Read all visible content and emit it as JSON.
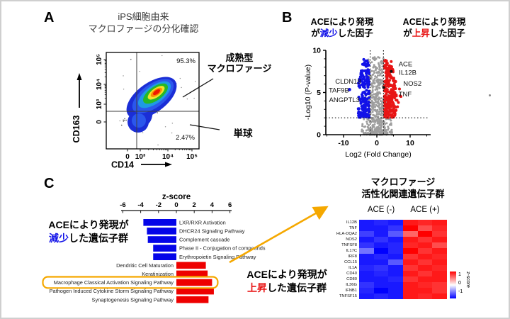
{
  "colors": {
    "blue": "#1212e8",
    "red": "#e81515",
    "orange": "#f5a800",
    "gray": "#9e9e9e",
    "dark_gray": "#3f3f3f"
  },
  "panel_a": {
    "label": "A",
    "title_line1": "iPS細胞由来",
    "title_line2": "マクロファージの分化確認",
    "x_axis_label": "CD14",
    "y_axis_label": "CD163",
    "pct_mature": "95.3%",
    "pct_monocyte": "2.47%",
    "mature_line1": "成熟型",
    "mature_line2": "マクロファージ",
    "monocyte": "単球"
  },
  "panel_b": {
    "label": "B",
    "down_title_line1": "ACEにより発現",
    "down_pre": "が",
    "down_word": "減少",
    "down_post": "した因子",
    "up_title_line1": "ACEにより発現",
    "up_pre": "が",
    "up_word": "上昇",
    "up_post": "した因子",
    "xlabel": "Log2 (Fold Change)",
    "ylabel": "-Log10 (P-value)"
  },
  "panel_c": {
    "label": "C",
    "bar_title": "z-score",
    "down_line1": "ACEにより発現が",
    "down_word": "減少",
    "down_post": "した遺伝子群",
    "up_line1": "ACEにより発現が",
    "up_word": "上昇",
    "up_post": "した遺伝子群",
    "heatmap_title_line1": "マクロファージ",
    "heatmap_title_line2": "活性化関連遺伝子群"
  },
  "chart_data": [
    {
      "type": "scatter",
      "name": "flow-cytometry-density",
      "title": "iPS細胞由来 マクロファージの分化確認",
      "xlabel": "CD14",
      "ylabel": "CD163",
      "x_ticks": [
        "0",
        "10³",
        "10⁴",
        "10⁵"
      ],
      "y_ticks": [
        "0",
        "10³",
        "10⁴",
        "10⁵"
      ],
      "quadrants": [
        {
          "region": "upper_right",
          "percent": "95.3%",
          "annotation": "成熟型マクロファージ"
        },
        {
          "region": "lower_right",
          "percent": "2.47%",
          "annotation": "単球"
        }
      ]
    },
    {
      "type": "scatter",
      "name": "volcano-plot",
      "xlabel": "Log2 (Fold Change)",
      "ylabel": "-Log10 (P-value)",
      "xlim": [
        -16,
        16
      ],
      "ylim": [
        0,
        10
      ],
      "x_ticks": [
        -10,
        0,
        10
      ],
      "y_ticks": [
        0,
        5,
        10
      ],
      "p_threshold_line_y": 2,
      "fc_threshold_lines_x": [
        -2,
        2
      ],
      "down_genes": [
        {
          "gene": "CLDN18",
          "x": -4.6,
          "y": 6.35,
          "lx": -4.1,
          "ly": 6.35
        },
        {
          "gene": "TAF9B",
          "x": -8.2,
          "y": 5.35,
          "lx": -7.7,
          "ly": 5.3
        },
        {
          "gene": "ANGPTL3",
          "x": -5.1,
          "y": 4.2,
          "lx": -4.5,
          "ly": 4.15
        }
      ],
      "up_genes": [
        {
          "gene": "ACE",
          "x": 4.4,
          "y": 8.05,
          "lx": 5.9,
          "ly": 8.4
        },
        {
          "gene": "IL12B",
          "x": 4.15,
          "y": 7.5,
          "lx": 6.0,
          "ly": 7.4
        },
        {
          "gene": "NOS2",
          "x": 5.6,
          "y": 6.3,
          "lx": 7.3,
          "ly": 6.1
        },
        {
          "gene": "TNF",
          "x": 4.5,
          "y": 5.15,
          "lx": 5.9,
          "ly": 4.85
        }
      ],
      "dark_points": [
        [
          4.35,
          7.5
        ],
        [
          2.05,
          5.6
        ]
      ],
      "n_points": {
        "gray": 520,
        "blue": 170,
        "red": 210
      }
    },
    {
      "type": "bar",
      "name": "pathway-z-scores",
      "title": "z-score",
      "orientation": "horizontal",
      "x_ticks": [
        "-6",
        "-4",
        "-2",
        "0",
        "2",
        "4",
        "6"
      ],
      "xlim": [
        -7,
        7
      ],
      "bars": [
        {
          "label": "LXR/RXR Activation",
          "value": -3.7
        },
        {
          "label": "DHCR24 Signaling Pathway",
          "value": -3.3
        },
        {
          "label": "Complement cascade",
          "value": -3.2
        },
        {
          "label": "Phase II - Conjugation of compounds",
          "value": -2.6
        },
        {
          "label": "Erythropoietin Signaling Pathway",
          "value": -2.6
        },
        {
          "label": "Dendritic Cell Maturation",
          "value": 3.3
        },
        {
          "label": "Keratinization",
          "value": 3.5
        },
        {
          "label": "Macrophage Classical Activation Signaling Pathway",
          "value": 4.0,
          "highlighted": true
        },
        {
          "label": "Pathogen Induced Cytokine Storm Signaling Pathway",
          "value": 4.2
        },
        {
          "label": "Synaptogenesis Signaling Pathway",
          "value": 3.6
        }
      ]
    },
    {
      "type": "heatmap",
      "name": "macrophage-activation-genes",
      "title": "マクロファージ 活性化関連遺伝子群",
      "col_groups": [
        {
          "label": "ACE (-)",
          "n_cols": 3
        },
        {
          "label": "ACE (+)",
          "n_cols": 3
        }
      ],
      "rows": [
        "IL12B",
        "TNF",
        "HLA-DQA2",
        "NOS2",
        "TNFSF8",
        "IL17C",
        "IRF8",
        "CCL15",
        "IL1A",
        "CD40",
        "CD80",
        "IL36G",
        "IFNB1",
        "TNFSF15"
      ],
      "values": [
        [
          -0.9,
          -0.85,
          -0.9,
          0.9,
          0.85,
          0.9
        ],
        [
          -0.9,
          -0.9,
          -0.8,
          1.0,
          0.7,
          0.85
        ],
        [
          -0.75,
          -0.9,
          -0.65,
          0.6,
          1.0,
          0.8
        ],
        [
          -0.9,
          -0.8,
          -0.9,
          0.9,
          0.8,
          0.9
        ],
        [
          -0.8,
          -0.9,
          -0.85,
          0.85,
          0.9,
          0.7
        ],
        [
          -0.55,
          -1.0,
          -0.85,
          1.0,
          0.8,
          0.9
        ],
        [
          -0.9,
          -0.85,
          -0.9,
          0.8,
          0.9,
          0.85
        ],
        [
          -0.9,
          -0.9,
          -0.65,
          0.9,
          0.8,
          0.9
        ],
        [
          -0.85,
          -0.8,
          -0.9,
          0.8,
          0.9,
          0.85
        ],
        [
          -0.9,
          -0.85,
          -0.9,
          0.9,
          0.8,
          0.9
        ],
        [
          -0.9,
          -0.9,
          -0.85,
          0.8,
          0.9,
          0.9
        ],
        [
          -0.8,
          -0.9,
          -0.9,
          0.9,
          0.85,
          0.8
        ],
        [
          -0.85,
          -1.0,
          -0.9,
          0.9,
          0.9,
          0.8
        ],
        [
          -0.9,
          -0.85,
          -0.9,
          0.9,
          0.85,
          0.9
        ]
      ],
      "colorbar": {
        "label": "z-score",
        "ticks": [
          "1",
          "0",
          "-1"
        ],
        "range": [
          -1,
          1
        ]
      }
    }
  ]
}
